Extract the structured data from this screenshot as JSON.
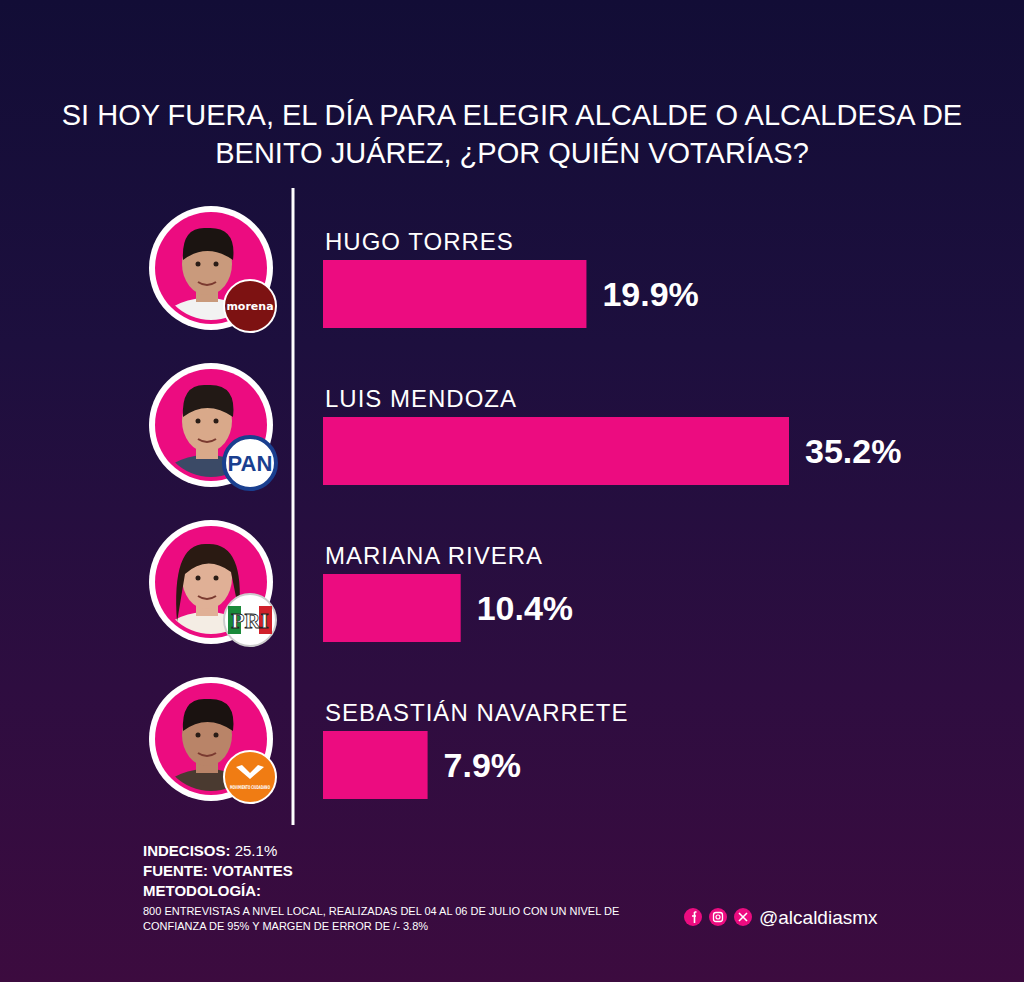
{
  "chart_data": {
    "type": "bar",
    "orientation": "horizontal",
    "title": "SI HOY FUERA, EL DÍA PARA ELEGIR ALCALDE O ALCALDESA DE BENITO JUÁREZ, ¿POR QUIÉN VOTARÍAS?",
    "categories": [
      "HUGO TORRES",
      "LUIS MENDOZA",
      "MARIANA RIVERA",
      "SEBASTIÁN NAVARRETE"
    ],
    "values": [
      19.9,
      35.2,
      10.4,
      7.9
    ],
    "value_labels": [
      "19.9%",
      "35.2%",
      "10.4%",
      "7.9%"
    ],
    "data_labels": true,
    "color": "#ec0c80",
    "xlim": [
      0,
      35.2
    ],
    "tick_labels": false,
    "parties": [
      "morena",
      "PAN",
      "PRI",
      "MOVIMIENTO CIUDADANO"
    ],
    "notes": [
      {
        "label": "INDECISOS:",
        "text": "25.1%"
      },
      {
        "label": "FUENTE:",
        "text": "VOTANTES"
      },
      {
        "label": "METODOLOGÍA:",
        "text": "800 ENTREVISTAS A NIVEL LOCAL, REALIZADAS DEL 04 AL 06 DE JULIO CON UN NIVEL DE CONFIANZA DE 95% Y MARGEN DE ERROR DE /- 3.8%"
      }
    ],
    "credit": "@alcaldiasmx"
  }
}
